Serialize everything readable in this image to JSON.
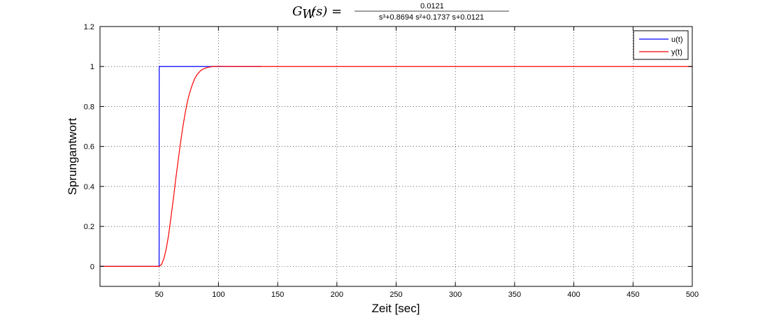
{
  "chart_data": {
    "type": "line",
    "title": {
      "lhs": "G",
      "lhs_sub": "W",
      "lhs_arg": "(s) =",
      "numerator": "0.0121",
      "denominator": "s³+0.8694 s²+0.1737 s+0.0121"
    },
    "xlabel": "Zeit [sec]",
    "ylabel": "Sprungantwort",
    "xlim": [
      0,
      500
    ],
    "ylim": [
      -0.1,
      1.2
    ],
    "xticks": [
      50,
      100,
      150,
      200,
      250,
      300,
      350,
      400,
      450,
      500
    ],
    "yticks": [
      0,
      0.2,
      0.4,
      0.6,
      0.8,
      1,
      1.2
    ],
    "ytick_labels": [
      "0",
      "0.2",
      "0.4",
      "0.6",
      "0.8",
      "1",
      "1.2"
    ],
    "grid": true,
    "legend_position": "top-right",
    "series": [
      {
        "name": "u(t)",
        "color": "#0000ff",
        "x": [
          0,
          49.9,
          50,
          136
        ],
        "y": [
          0,
          0,
          1,
          1
        ]
      },
      {
        "name": "y(t)",
        "color": "#ff0000",
        "x": [
          0,
          50,
          52,
          54,
          56,
          58,
          60,
          62,
          64,
          66,
          68,
          70,
          72,
          74,
          76,
          78,
          80,
          82,
          85,
          88,
          92,
          96,
          100,
          110,
          130,
          200,
          300,
          400,
          500
        ],
        "y": [
          0,
          0,
          0.01,
          0.04,
          0.09,
          0.16,
          0.25,
          0.34,
          0.44,
          0.53,
          0.62,
          0.7,
          0.77,
          0.83,
          0.875,
          0.91,
          0.94,
          0.96,
          0.98,
          0.99,
          0.997,
          1.0,
          1.001,
          1.0,
          1.0,
          1.0,
          1.0,
          1.0,
          1.0
        ]
      }
    ]
  }
}
